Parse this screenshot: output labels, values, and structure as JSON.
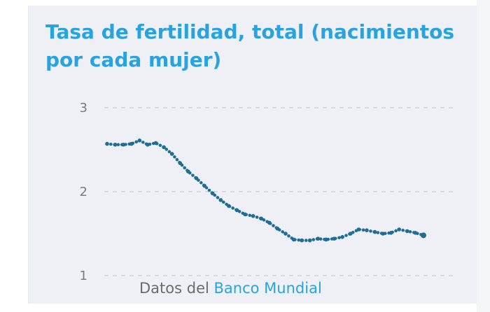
{
  "card": {
    "title": "Tasa de fertilidad, total (nacimientos por cada mujer)"
  },
  "source": {
    "prefix": "Datos del",
    "link_label": "Banco Mundial"
  },
  "colors": {
    "title": "#29a3df",
    "series": "#1f6d95",
    "link": "#29a3df",
    "card_background": "#eef0f5"
  },
  "chart_data": {
    "type": "line",
    "marker_style": "dotted",
    "grid": true,
    "ylim": [
      1,
      3
    ],
    "yticks": [
      {
        "value": 3,
        "label": "3"
      },
      {
        "value": 2,
        "label": "2"
      },
      {
        "value": 1,
        "label": "1"
      }
    ],
    "xlabel": "",
    "ylabel": "",
    "series": [
      {
        "values": [
          2.57,
          2.56,
          2.56,
          2.57,
          2.61,
          2.56,
          2.58,
          2.53,
          2.45,
          2.34,
          2.24,
          2.16,
          2.07,
          1.98,
          1.9,
          1.83,
          1.78,
          1.73,
          1.71,
          1.68,
          1.63,
          1.56,
          1.5,
          1.43,
          1.42,
          1.42,
          1.44,
          1.43,
          1.44,
          1.46,
          1.5,
          1.55,
          1.54,
          1.52,
          1.5,
          1.51,
          1.55,
          1.53,
          1.51,
          1.48
        ]
      }
    ]
  }
}
